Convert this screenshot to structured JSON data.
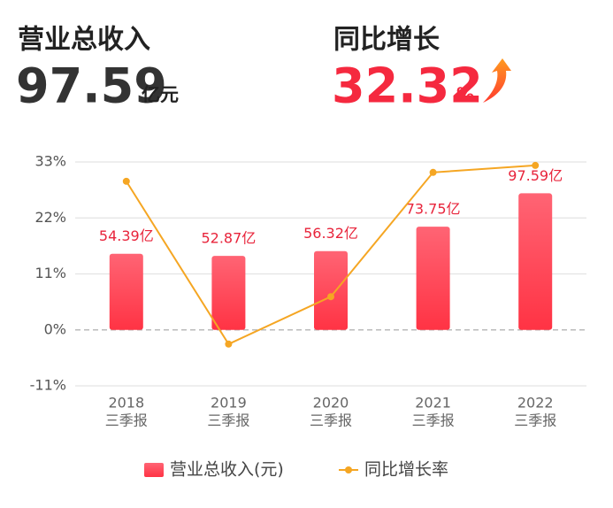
{
  "header": {
    "revenue": {
      "title": "营业总收入",
      "value": 97.59,
      "unit": "亿元"
    },
    "growth": {
      "title": "同比增长",
      "value": 32.32,
      "unit": "%"
    }
  },
  "chart_data": {
    "type": "bar-line",
    "categories": [
      "2018",
      "2019",
      "2020",
      "2021",
      "2022"
    ],
    "category_periods": [
      "三季报",
      "三季报",
      "三季报",
      "三季报",
      "三季报"
    ],
    "series": [
      {
        "name": "营业总收入(元)",
        "type": "bar",
        "axis": "y2",
        "color": "#ff4a5c",
        "values": [
          54.39,
          52.87,
          56.32,
          73.75,
          97.59
        ],
        "value_labels": [
          "54.39亿",
          "52.87亿",
          "56.32亿",
          "73.75亿",
          "97.59亿"
        ]
      },
      {
        "name": "同比增长率",
        "type": "line",
        "color": "#f5a623",
        "values": [
          29.2,
          -2.79,
          6.53,
          30.95,
          32.32
        ]
      }
    ],
    "ylim": [
      -11,
      33
    ],
    "yticks": [
      {
        "value": -11,
        "label": "-11%"
      },
      {
        "value": 0,
        "label": "0%"
      },
      {
        "value": 11,
        "label": "11%"
      },
      {
        "value": 22,
        "label": "22%"
      },
      {
        "value": 33,
        "label": "33%"
      }
    ],
    "y2lim": [
      -40,
      120
    ],
    "grid": true
  }
}
